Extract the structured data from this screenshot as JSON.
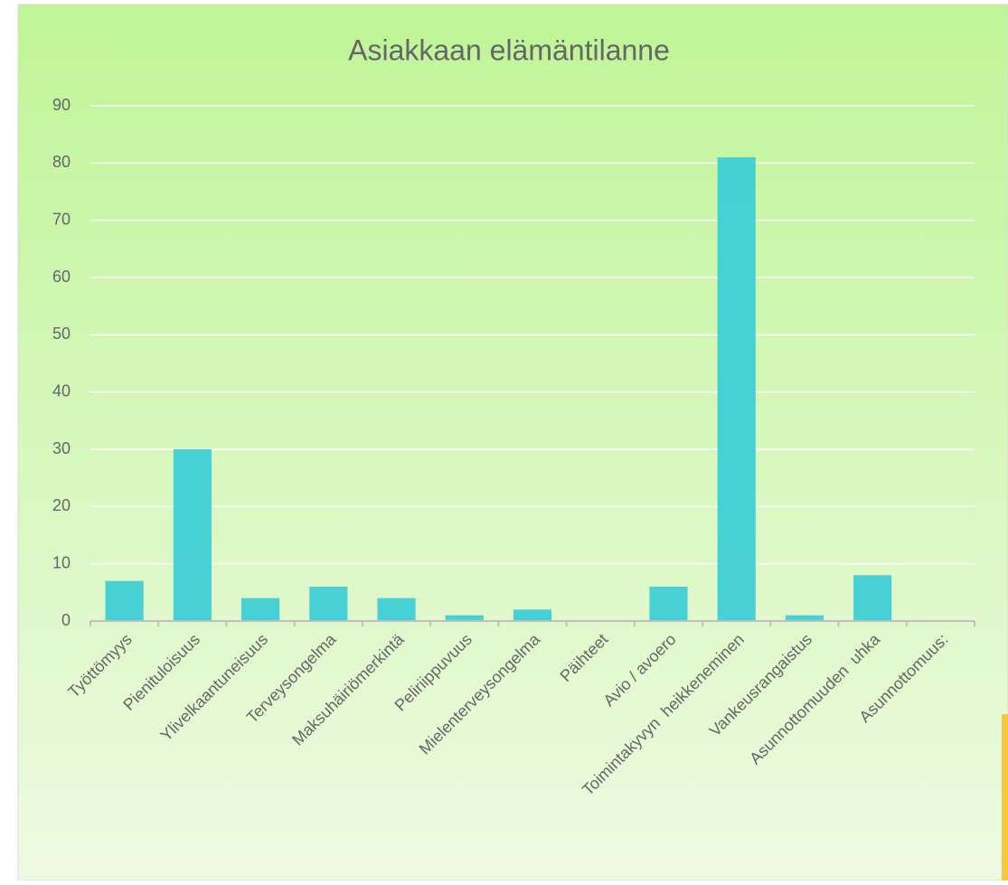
{
  "chart_data": {
    "type": "bar",
    "title": "Asiakkaan elämäntilanne",
    "categories": [
      "Työttömyys",
      "Pienituloisuus",
      "Ylivelkaantuneisuus",
      "Terveysongelma",
      "Maksuhäiriömerkintä",
      "Peliriippuvuus",
      "Mielenterveysongelma",
      "Päihteet",
      "Avio / avoero",
      "Toimintakyvyn  heikkeneminen",
      "Vankeusrangaistus",
      "Asunnottomuuden  uhka",
      "Asunnottomuus:"
    ],
    "values": [
      7,
      30,
      4,
      6,
      4,
      1,
      2,
      0,
      6,
      81,
      1,
      8,
      0
    ],
    "color": "#3ecfd5",
    "ylim": [
      0,
      90
    ],
    "yticks": [
      0,
      10,
      20,
      30,
      40,
      50,
      60,
      70,
      80,
      90
    ],
    "grid": true
  }
}
